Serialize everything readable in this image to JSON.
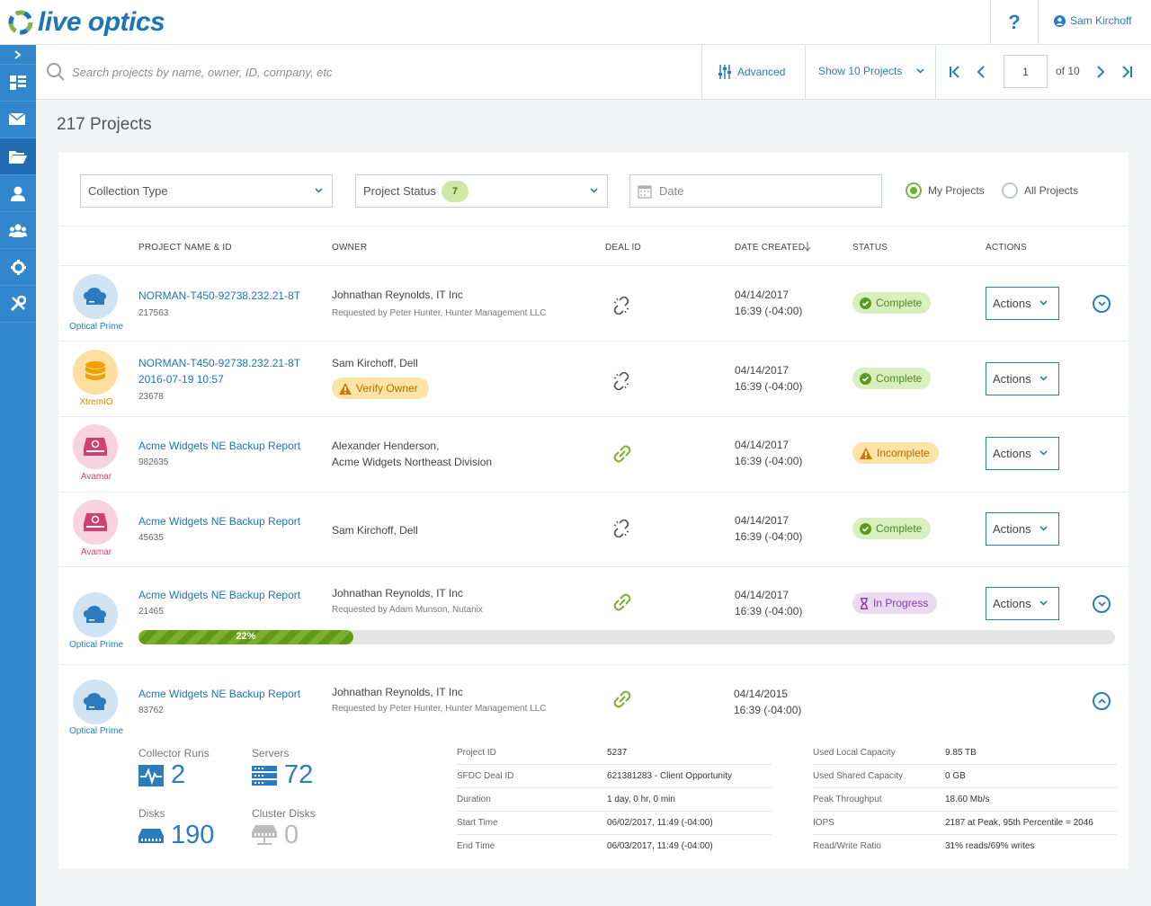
{
  "app": {
    "logo_text": "live optics",
    "help_label": "?",
    "user_name": "Sam Kirchoff"
  },
  "toolbar": {
    "search_placeholder": "Search projects by name, owner, ID, company, etc",
    "advanced_label": "Advanced",
    "show_label": "Show 10 Projects",
    "page_value": "1",
    "page_of": "of 10"
  },
  "page": {
    "title": "217 Projects"
  },
  "filters": {
    "collection_type": "Collection Type",
    "project_status": "Project Status",
    "project_status_count": "7",
    "date_placeholder": "Date",
    "my_projects": "My Projects",
    "all_projects": "All Projects",
    "selected": "My Projects"
  },
  "columns": {
    "name": "PROJECT NAME & ID",
    "owner": "OWNER",
    "deal": "DEAL ID",
    "date": "DATE CREATED",
    "status": "STATUS",
    "actions": "ACTIONS"
  },
  "rows": [
    {
      "type_label": "Optical Prime",
      "name": "NORMAN-T450-92738.232.21-8T",
      "id": "217563",
      "owner": "Johnathan Reynolds, IT Inc",
      "owner_sub": "Requested by Peter Hunter, Hunter Management LLC",
      "deal": "unlinked",
      "date": "04/14/2017",
      "time": "16:39 (-04:00)",
      "status": "Complete",
      "actions": "Actions"
    },
    {
      "type_label": "XtremIO",
      "name": "NORMAN-T450-92738.232.21-8T",
      "name2": "2016-07-19 10:57",
      "id": "23678",
      "owner": "Sam Kirchoff, Dell",
      "verify": "Verify Owner",
      "deal": "unlinked",
      "date": "04/14/2017",
      "time": "16:39 (-04:00)",
      "status": "Complete",
      "actions": "Actions"
    },
    {
      "type_label": "Avamar",
      "name": "Acme Widgets NE Backup Report",
      "id": "982635",
      "owner": "Alexander Henderson,",
      "owner2": "Acme Widgets Northeast Division",
      "deal": "linked",
      "date": "04/14/2017",
      "time": "16:39 (-04:00)",
      "status": "Incomplete",
      "actions": "Actions"
    },
    {
      "type_label": "Avamar",
      "name": "Acme Widgets NE Backup Report",
      "id": "45635",
      "owner": "Sam Kirchoff, Dell",
      "deal": "unlinked",
      "date": "04/14/2017",
      "time": "16:39 (-04:00)",
      "status": "Complete",
      "actions": "Actions"
    },
    {
      "type_label": "Optical Prime",
      "name": "Acme Widgets NE Backup Report",
      "id": "21465",
      "owner": "Johnathan Reynolds, IT Inc",
      "owner_sub": "Requested by Adam Munson, Nutanix",
      "deal": "linked",
      "date": "04/14/2017",
      "time": "16:39 (-04:00)",
      "status": "In Progress",
      "actions": "Actions",
      "progress_pct": 22,
      "progress_label": "22%"
    },
    {
      "type_label": "Optical Prime",
      "name": "Acme Widgets NE Backup Report",
      "id": "83762",
      "owner": "Johnathan Reynolds, IT Inc",
      "owner_sub": "Requested by Peter Hunter, Hunter Management LLC",
      "deal": "linked",
      "date": "04/14/2015",
      "time": "16:39 (-04:00)"
    }
  ],
  "details": {
    "collector_runs_label": "Collector Runs",
    "collector_runs": "2",
    "servers_label": "Servers",
    "servers": "72",
    "disks_label": "Disks",
    "disks": "190",
    "cluster_disks_label": "Cluster Disks",
    "cluster_disks": "0",
    "left": [
      {
        "k": "Project ID",
        "v": "5237"
      },
      {
        "k": "SFDC Deal ID",
        "v": "621381283 - Client Opportunity"
      },
      {
        "k": "Duration",
        "v": "1 day, 0 hr, 0 min"
      },
      {
        "k": "Start Time",
        "v": "06/02/2017, 11:49 (-04:00)"
      },
      {
        "k": "End Time",
        "v": "06/03/2017, 11:49 (-04:00)"
      }
    ],
    "right": [
      {
        "k": "Used Local Capacity",
        "v": "9.85 TB"
      },
      {
        "k": "Used Shared Capacity",
        "v": "0 GB"
      },
      {
        "k": "Peak Throughput",
        "v": "18.60 Mb/s"
      },
      {
        "k": "IOPS",
        "v": "2187 at Peak, 95th Percentile = 2046"
      },
      {
        "k": "Read/Write Ratio",
        "v": "31% reads/69% writes"
      }
    ]
  },
  "colors": {
    "brand": "#1d74b9",
    "sidebar": "#3286cc",
    "complete": "#4f8a1e",
    "incomplete": "#b66d00",
    "in_progress": "#8a3aa8",
    "optical_prime": "#2a7cbf",
    "xtremio": "#e59a00",
    "avamar": "#d1406f"
  },
  "icons": {
    "sidebar": [
      "chevron-right-icon",
      "dashboard-icon",
      "mail-icon",
      "folder-icon",
      "user-icon",
      "group-icon",
      "gear-icon",
      "tools-icon"
    ]
  }
}
